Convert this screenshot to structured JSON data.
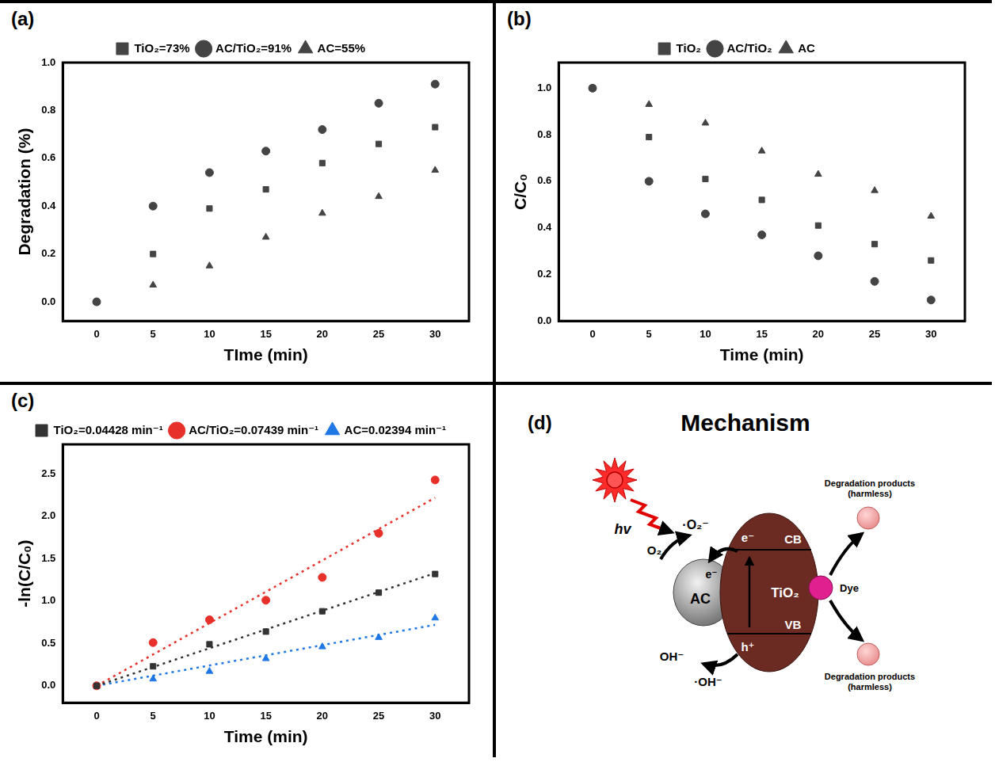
{
  "chart_data": [
    {
      "type": "scatter",
      "panel": "(a)",
      "x_label": "TIme (min)",
      "y_label": "Degradation (%)",
      "x": [
        0,
        5,
        10,
        15,
        20,
        25,
        30
      ],
      "series": [
        {
          "name": "TiO₂=73%",
          "color": "#444444",
          "marker": "square",
          "values": [
            0,
            0.2,
            0.39,
            0.47,
            0.58,
            0.66,
            0.73
          ]
        },
        {
          "name": "AC/TiO₂=91%",
          "color": "#444444",
          "marker": "circle",
          "values": [
            0,
            0.4,
            0.54,
            0.63,
            0.72,
            0.83,
            0.91
          ]
        },
        {
          "name": "AC=55%",
          "color": "#444444",
          "marker": "triangle",
          "values": [
            0,
            0.07,
            0.15,
            0.27,
            0.37,
            0.44,
            0.55
          ]
        }
      ],
      "xlim": [
        -3,
        33
      ],
      "xticks": [
        0,
        5,
        10,
        15,
        20,
        25,
        30
      ],
      "ylim": [
        -0.08,
        1.0
      ],
      "yticks": [
        {
          "value": 0,
          "label": "0.0"
        },
        0.2,
        0.4,
        0.6,
        0.8,
        {
          "value": 1,
          "label": "1.0"
        }
      ],
      "grid": false,
      "legend": "top"
    },
    {
      "type": "scatter",
      "panel": "(b)",
      "x_label": "Time (min)",
      "y_label": "C/C₀",
      "x": [
        0,
        5,
        10,
        15,
        20,
        25,
        30
      ],
      "series": [
        {
          "name": "TiO₂",
          "color": "#444444",
          "marker": "square",
          "values": [
            1.0,
            0.79,
            0.61,
            0.52,
            0.41,
            0.33,
            0.26
          ]
        },
        {
          "name": "AC/TiO₂",
          "color": "#444444",
          "marker": "circle",
          "values": [
            1.0,
            0.6,
            0.46,
            0.37,
            0.28,
            0.17,
            0.09
          ]
        },
        {
          "name": "AC",
          "color": "#444444",
          "marker": "triangle",
          "values": [
            1.0,
            0.93,
            0.85,
            0.73,
            0.63,
            0.56,
            0.45
          ]
        }
      ],
      "xlim": [
        -3,
        33
      ],
      "xticks": [
        0,
        5,
        10,
        15,
        20,
        25,
        30
      ],
      "ylim": [
        0,
        1.11
      ],
      "yticks": [
        {
          "value": 0,
          "label": "0.0"
        },
        0.2,
        0.4,
        0.6,
        0.8,
        {
          "value": 1,
          "label": "1.0"
        }
      ],
      "grid": false,
      "legend": "top"
    },
    {
      "type": "scatter",
      "panel": "(c)",
      "x_label": "Time (min)",
      "y_label": "-ln(C/C₀)",
      "x": [
        0,
        5,
        10,
        15,
        20,
        25,
        30
      ],
      "series": [
        {
          "name": "TiO₂=0.04428 min⁻¹",
          "color": "#333333",
          "marker": "square",
          "line_style": "dotted",
          "values": [
            0,
            0.23,
            0.49,
            0.64,
            0.88,
            1.1,
            1.32
          ],
          "fit": {
            "x": [
              0,
              30
            ],
            "values": [
              0,
              1.33
            ]
          }
        },
        {
          "name": "AC/TiO₂=0.07439 min⁻¹",
          "color": "#e8302a",
          "marker": "circle",
          "line_style": "dotted",
          "values": [
            0,
            0.51,
            0.78,
            1.01,
            1.28,
            1.8,
            2.43
          ],
          "fit": {
            "x": [
              0,
              30
            ],
            "values": [
              0,
              2.22
            ]
          }
        },
        {
          "name": "AC=0.02394 min⁻¹",
          "color": "#1f77e6",
          "marker": "triangle",
          "line_style": "dotted",
          "values": [
            0,
            0.08,
            0.17,
            0.32,
            0.46,
            0.57,
            0.8
          ],
          "fit": {
            "x": [
              0,
              30
            ],
            "values": [
              0,
              0.72
            ]
          }
        }
      ],
      "xlim": [
        -3,
        33
      ],
      "xticks": [
        0,
        5,
        10,
        15,
        20,
        25,
        30
      ],
      "ylim": [
        -0.2,
        2.85
      ],
      "yticks": [
        {
          "value": 0,
          "label": "0.0"
        },
        0.5,
        {
          "value": 1,
          "label": "1.0"
        },
        1.5,
        {
          "value": 2,
          "label": "2.0"
        },
        2.5
      ],
      "grid": false,
      "legend": "top"
    }
  ],
  "diagram": {
    "panel": "(d)",
    "title": "Mechanism",
    "light": "hv",
    "nodes": {
      "ac": "AC",
      "tio2": "TiO₂",
      "cb": "CB",
      "vb": "VB",
      "dye": "Dye"
    },
    "labels": {
      "o2": "O₂",
      "superoxide": "·O₂⁻",
      "electron_cb": "e⁻",
      "electron_ac": "e⁻",
      "hole": "h⁺",
      "hydroxide": "OH⁻",
      "hydroxyl": "·OH⁻",
      "product_top": "Degradation products (harmless)",
      "product_bottom": "Degradation products (harmless)"
    }
  }
}
